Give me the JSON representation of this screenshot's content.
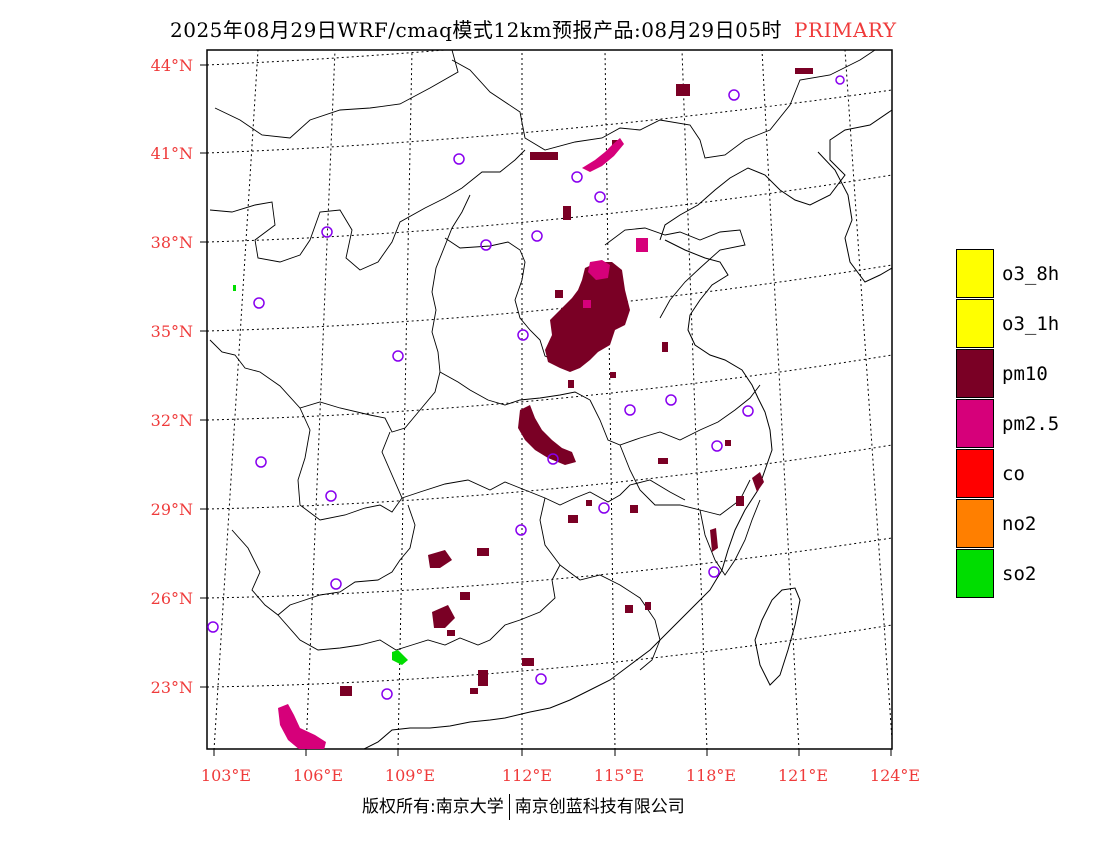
{
  "header": {
    "title": "2025年08月29日WRF/cmaq模式12km预报产品:08月29日05时",
    "tag": "PRIMARY"
  },
  "map": {
    "lat_labels": [
      "44°N",
      "41°N",
      "38°N",
      "35°N",
      "32°N",
      "29°N",
      "26°N",
      "23°N"
    ],
    "lon_labels": [
      "103°E",
      "106°E",
      "109°E",
      "112°E",
      "115°E",
      "118°E",
      "121°E",
      "124°E"
    ],
    "label_color": "#ef3b3b",
    "grid": "dotted",
    "station_marker": "purple-circle",
    "station_color": "#8800ee"
  },
  "legend": [
    {
      "label": "o3_8h",
      "color": "#ffff00"
    },
    {
      "label": "o3_1h",
      "color": "#ffff00"
    },
    {
      "label": "pm10",
      "color": "#7a0025"
    },
    {
      "label": "pm2.5",
      "color": "#d6007a"
    },
    {
      "label": "co",
      "color": "#ff0000"
    },
    {
      "label": "no2",
      "color": "#ff7f00"
    },
    {
      "label": "so2",
      "color": "#00dd00"
    }
  ],
  "footer": {
    "left": "版权所有:南京大学",
    "right": "南京创蓝科技有限公司"
  }
}
